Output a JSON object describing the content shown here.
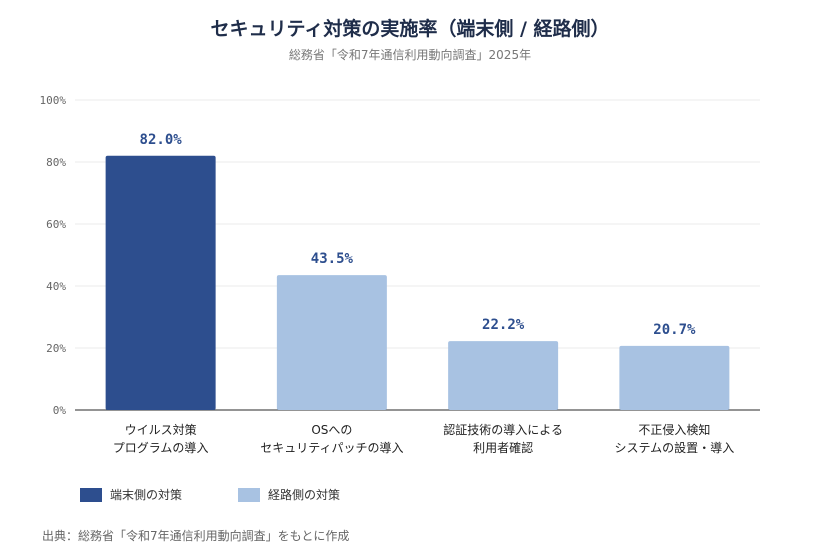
{
  "colors": {
    "endpoint": "#2d4e8e",
    "network": "#a8c2e2",
    "grid": "#ebebeb",
    "axis": "#555555",
    "label": "#2d4e8e"
  },
  "chart_data": {
    "type": "bar",
    "title": "セキュリティ対策の実施率（端末側 / 経路側）",
    "subtitle": "総務省「令和7年通信利用動向調査」2025年",
    "ylim": [
      0,
      100
    ],
    "yticks": [
      "0%",
      "20%",
      "40%",
      "60%",
      "80%",
      "100%"
    ],
    "categories": [
      [
        "ウイルス対策",
        "プログラムの導入"
      ],
      [
        "OSへの",
        "セキュリティパッチの導入"
      ],
      [
        "認証技術の導入による",
        "利用者確認"
      ],
      [
        "不正侵入検知",
        "システムの設置・導入"
      ]
    ],
    "values": [
      82.0,
      43.5,
      22.2,
      20.7
    ],
    "value_labels": [
      "82.0%",
      "43.5%",
      "22.2%",
      "20.7%"
    ],
    "groups": [
      "endpoint",
      "network",
      "network",
      "network"
    ],
    "legend": [
      {
        "key": "endpoint",
        "name": "端末側の対策"
      },
      {
        "key": "network",
        "name": "経路側の対策"
      }
    ],
    "legend_position": "bottom-left",
    "grid": true
  },
  "source": "出典：総務省「令和7年通信利用動向調査」をもとに作成"
}
